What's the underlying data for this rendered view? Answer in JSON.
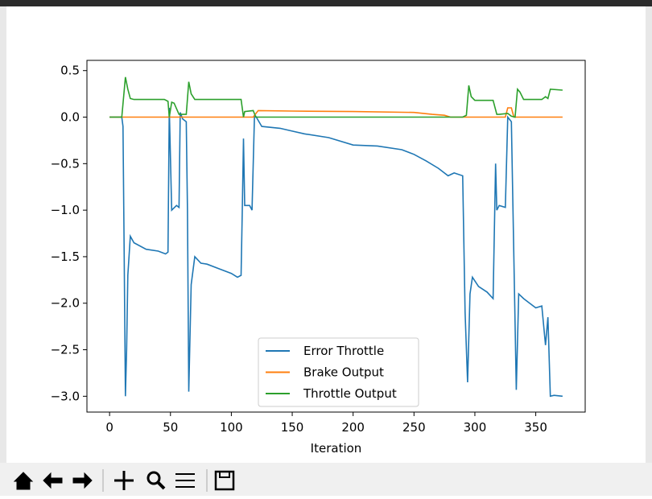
{
  "chart_data": {
    "type": "line",
    "xlabel": "Iteration",
    "xlim": [
      -18.6,
      390.6
    ],
    "ylim": [
      -3.17,
      0.61
    ],
    "xticks": [
      0,
      50,
      100,
      150,
      200,
      250,
      300,
      350
    ],
    "yticks": [
      {
        "value": -3.0,
        "label": "−3.0"
      },
      {
        "value": -2.5,
        "label": "−2.5"
      },
      {
        "value": -2.0,
        "label": "−2.0"
      },
      {
        "value": -1.5,
        "label": "−1.5"
      },
      {
        "value": -1.0,
        "label": "−1.0"
      },
      {
        "value": -0.5,
        "label": "−0.5"
      },
      {
        "value": 0.0,
        "label": "0.0"
      },
      {
        "value": 0.5,
        "label": "0.5"
      }
    ],
    "legend": "lower center",
    "series": [
      {
        "name": "Error Throttle",
        "color": "#1f77b4",
        "x": [
          0,
          10,
          11,
          12,
          13,
          14,
          15,
          17,
          20,
          30,
          40,
          46,
          48,
          49,
          51,
          55,
          57,
          58,
          60,
          63,
          64,
          65,
          67,
          70,
          75,
          80,
          90,
          100,
          105,
          108,
          109,
          110,
          111,
          115,
          117,
          119,
          120,
          125,
          140,
          150,
          160,
          180,
          200,
          220,
          240,
          250,
          260,
          270,
          278,
          283,
          290,
          292,
          294,
          296,
          298,
          303,
          310,
          315,
          317,
          318,
          320,
          325,
          327,
          330,
          334,
          336,
          340,
          345,
          350,
          355,
          358,
          360,
          362,
          365,
          372
        ],
        "values": [
          0,
          0,
          -0.1,
          -1.5,
          -3.0,
          -2.5,
          -1.7,
          -1.28,
          -1.35,
          -1.42,
          -1.44,
          -1.47,
          -1.45,
          0.1,
          -1.0,
          -0.95,
          -0.97,
          0.05,
          -0.02,
          -0.05,
          -1.0,
          -2.95,
          -1.8,
          -1.5,
          -1.57,
          -1.58,
          -1.63,
          -1.68,
          -1.72,
          -1.7,
          -1.0,
          -0.23,
          -0.95,
          -0.95,
          -1.0,
          0.0,
          0.01,
          -0.1,
          -0.12,
          -0.15,
          -0.18,
          -0.22,
          -0.3,
          -0.31,
          -0.35,
          -0.4,
          -0.47,
          -0.55,
          -0.63,
          -0.6,
          -0.63,
          -2.1,
          -2.85,
          -1.9,
          -1.72,
          -1.82,
          -1.88,
          -1.95,
          -0.5,
          -1.0,
          -0.95,
          -0.97,
          0.0,
          -0.05,
          -2.93,
          -1.9,
          -1.95,
          -2.0,
          -2.05,
          -2.03,
          -2.45,
          -2.15,
          -3.0,
          -2.99,
          -3.0
        ]
      },
      {
        "name": "Brake Output",
        "color": "#ff7f0e",
        "x": [
          0,
          118,
          122,
          150,
          200,
          250,
          265,
          275,
          280,
          325,
          327,
          330,
          332,
          372
        ],
        "values": [
          0,
          0,
          0.07,
          0.065,
          0.06,
          0.05,
          0.03,
          0.02,
          0,
          0,
          0.1,
          0.1,
          0,
          0
        ]
      },
      {
        "name": "Throttle Output",
        "color": "#2ca02c",
        "x": [
          0,
          10,
          13,
          15,
          17,
          20,
          45,
          48,
          49,
          51,
          53,
          57,
          63,
          65,
          67,
          70,
          108,
          110,
          111,
          118,
          120,
          290,
          293,
          295,
          297,
          300,
          315,
          318,
          320,
          327,
          330,
          333,
          335,
          337,
          340,
          355,
          358,
          360,
          362,
          372
        ],
        "values": [
          0,
          0,
          0.43,
          0.3,
          0.2,
          0.19,
          0.19,
          0.17,
          0,
          0.16,
          0.15,
          0.03,
          0.03,
          0.38,
          0.25,
          0.19,
          0.19,
          0,
          0.06,
          0.07,
          0,
          0,
          0.02,
          0.34,
          0.22,
          0.18,
          0.18,
          0.03,
          0.03,
          0.04,
          0.01,
          0,
          0.3,
          0.27,
          0.19,
          0.19,
          0.22,
          0.2,
          0.3,
          0.29
        ]
      }
    ]
  }
}
